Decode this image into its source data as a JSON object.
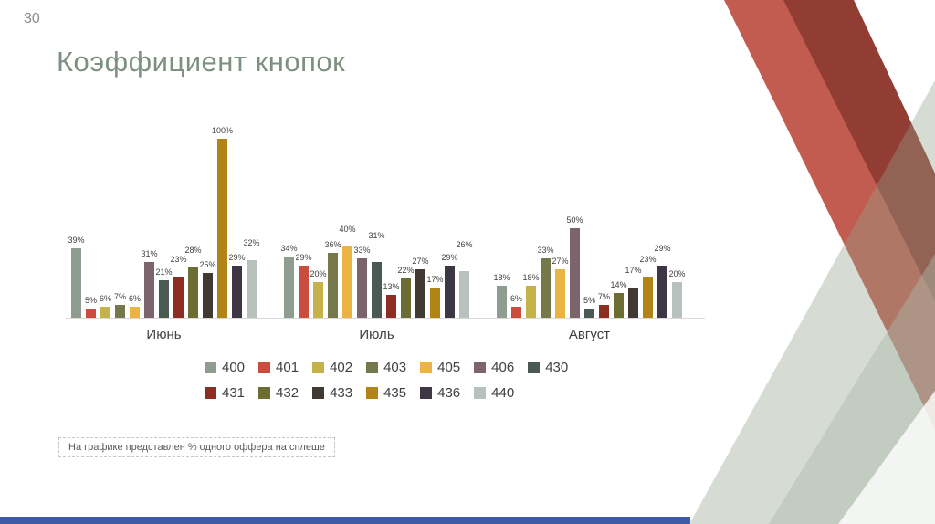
{
  "slide": {
    "page_number": "30",
    "title": "Коэффициент кнопок",
    "note": "На графике представлен % одного оффера на сплеше"
  },
  "chart_data": {
    "type": "bar",
    "title": "Коэффициент кнопок",
    "categories": [
      "Июнь",
      "Июль",
      "Август"
    ],
    "series": [
      {
        "name": "400",
        "color": "#8e9d90",
        "values": [
          39,
          34,
          18
        ]
      },
      {
        "name": "401",
        "color": "#cb4d3e",
        "values": [
          5,
          29,
          6
        ]
      },
      {
        "name": "402",
        "color": "#c5b24b",
        "values": [
          6,
          20,
          18
        ]
      },
      {
        "name": "403",
        "color": "#75784a",
        "values": [
          7,
          36,
          33
        ]
      },
      {
        "name": "405",
        "color": "#eab342",
        "values": [
          6,
          40,
          27
        ]
      },
      {
        "name": "406",
        "color": "#7c646b",
        "values": [
          31,
          33,
          50
        ]
      },
      {
        "name": "430",
        "color": "#4a5a52",
        "values": [
          21,
          31,
          5
        ]
      },
      {
        "name": "431",
        "color": "#8e2d22",
        "values": [
          23,
          13,
          7
        ]
      },
      {
        "name": "432",
        "color": "#6b6d33",
        "values": [
          28,
          22,
          14
        ]
      },
      {
        "name": "433",
        "color": "#403a33",
        "values": [
          25,
          27,
          17
        ]
      },
      {
        "name": "435",
        "color": "#b28418",
        "values": [
          100,
          17,
          23
        ]
      },
      {
        "name": "436",
        "color": "#3d3745",
        "values": [
          29,
          29,
          29
        ]
      },
      {
        "name": "440",
        "color": "#b6c2bb",
        "values": [
          32,
          26,
          20
        ]
      }
    ],
    "value_suffix": "%",
    "xlabel": "",
    "ylabel": "",
    "ylim": [
      0,
      100
    ],
    "grid": false,
    "legend_position": "bottom",
    "legend_rows": [
      7,
      6
    ]
  },
  "decor": {
    "salmon": "#bf5347",
    "maroon": "#8e3b31",
    "sage_dark": "#93a38f",
    "sage_light": "#aeb9a8",
    "white_tri": "#ffffff",
    "blue_bar": "#3c5aa6"
  }
}
